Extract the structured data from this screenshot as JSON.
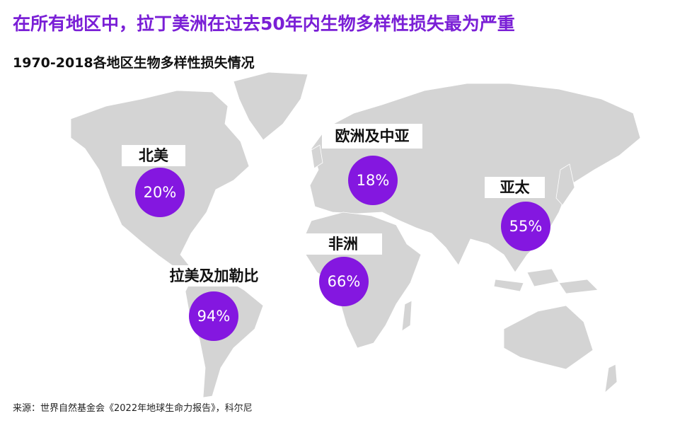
{
  "header": {
    "title": "在所有地区中，拉丁美洲在过去50年内生物多样性损失最为严重",
    "subtitle": "1970-2018各地区生物多样性损失情况"
  },
  "regions": [
    {
      "name": "北美",
      "value": "20%"
    },
    {
      "name": "欧洲及中亚",
      "value": "18%"
    },
    {
      "name": "亚太",
      "value": "55%"
    },
    {
      "name": "非洲",
      "value": "66%"
    },
    {
      "name": "拉美及加勒比",
      "value": "94%"
    }
  ],
  "footer": {
    "source": "来源：世界自然基金会《2022年地球生命力报告》，科尔尼"
  }
}
